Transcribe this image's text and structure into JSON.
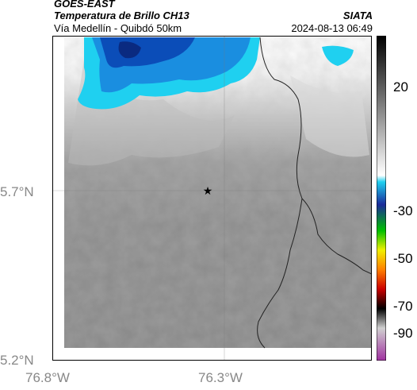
{
  "header": {
    "satellite": "GOES-EAST",
    "product": "Temperatura de Brillo CH13",
    "region": "Vía Medellín - Quibdó 50km",
    "source": "SIATA",
    "datetime": "2024-08-13 06:49"
  },
  "axes": {
    "y_ticks": [
      "5.7°N",
      "5.2°N"
    ],
    "x_ticks": [
      "76.8°W",
      "76.3°W"
    ]
  },
  "colorbar": {
    "ticks": [
      "20",
      "-30",
      "-50",
      "-70",
      "-90"
    ]
  },
  "colors": {
    "cold_cloud_blue": "#1a73d9",
    "cyan": "#1fd0f0",
    "warm_gray": "#8a8a8a",
    "cloud_white": "#f5f5f5"
  },
  "marker": {
    "icon": "star-icon"
  }
}
